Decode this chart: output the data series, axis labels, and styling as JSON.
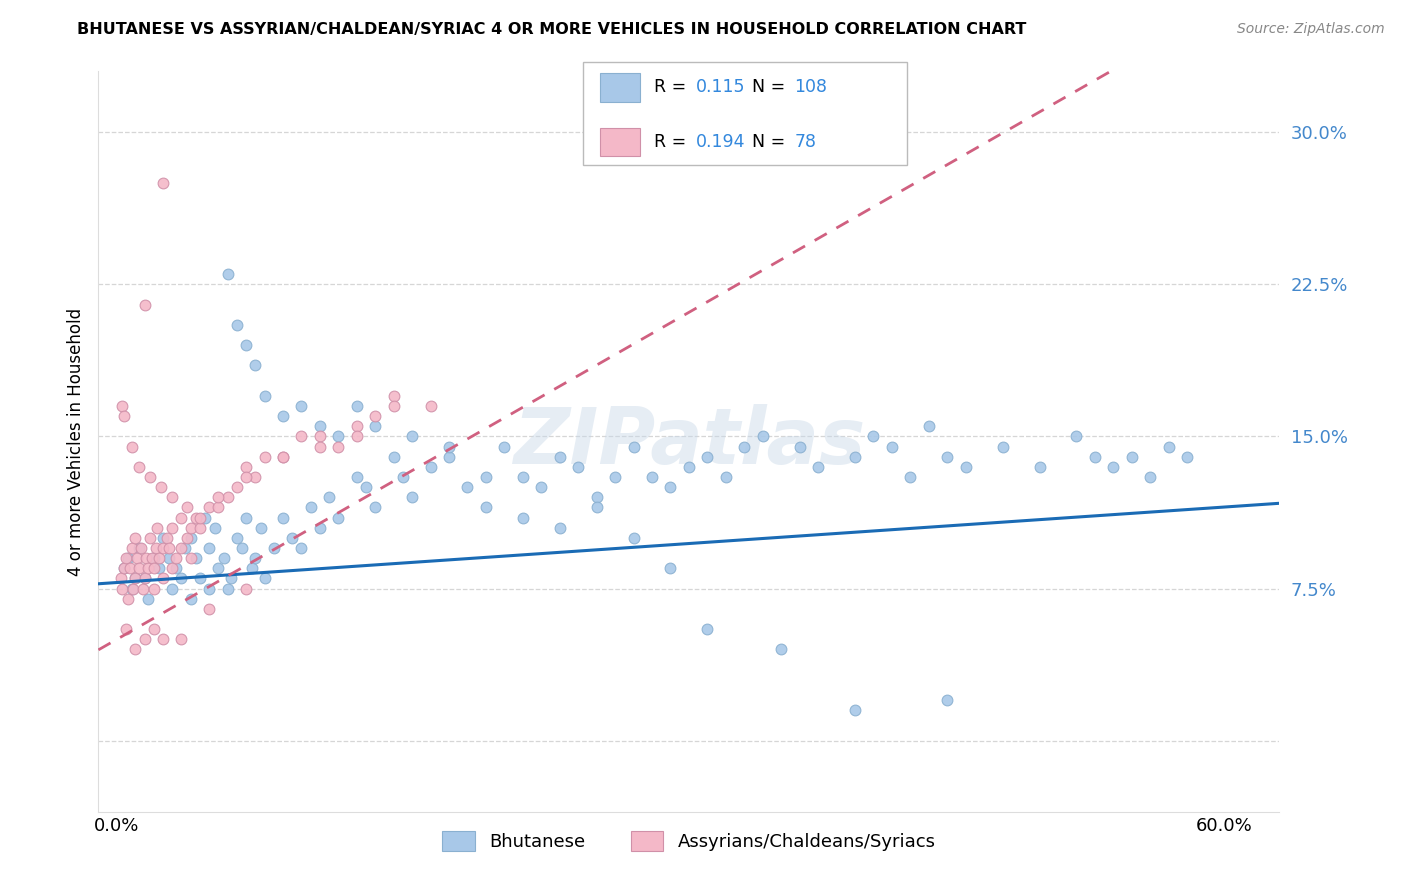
{
  "title": "BHUTANESE VS ASSYRIAN/CHALDEAN/SYRIAC 4 OR MORE VEHICLES IN HOUSEHOLD CORRELATION CHART",
  "source": "Source: ZipAtlas.com",
  "ylabel": "4 or more Vehicles in Household",
  "blue_R": "0.115",
  "blue_N": "108",
  "pink_R": "0.194",
  "pink_N": "78",
  "blue_color": "#a8c8e8",
  "pink_color": "#f4b8c8",
  "trendline_blue": "#1a6bb5",
  "trendline_pink": "#d06080",
  "watermark": "ZIPatlas",
  "legend_label_blue": "Bhutanese",
  "legend_label_pink": "Assyrians/Chaldeans/Syriacs",
  "blue_intercept": 7.8,
  "blue_slope": 0.062,
  "pink_intercept": 5.0,
  "pink_slope": 0.52,
  "xlim_min": -1.0,
  "xlim_max": 63.0,
  "ylim_min": -3.5,
  "ylim_max": 33.0,
  "ytick_vals": [
    0.0,
    7.5,
    15.0,
    22.5,
    30.0
  ],
  "ytick_labels": [
    "",
    "7.5%",
    "15.0%",
    "22.5%",
    "30.0%"
  ],
  "xtick_vals": [
    0,
    10,
    20,
    30,
    40,
    50,
    60
  ],
  "xtick_labels": [
    "0.0%",
    "",
    "",
    "",
    "",
    "",
    "60.0%"
  ],
  "blue_x": [
    0.4,
    0.6,
    0.8,
    1.0,
    1.2,
    1.5,
    1.7,
    2.0,
    2.3,
    2.5,
    2.8,
    3.0,
    3.2,
    3.5,
    3.7,
    4.0,
    4.0,
    4.3,
    4.5,
    4.8,
    5.0,
    5.0,
    5.3,
    5.5,
    5.8,
    6.0,
    6.2,
    6.5,
    6.8,
    7.0,
    7.3,
    7.5,
    7.8,
    8.0,
    8.5,
    9.0,
    9.5,
    10.0,
    10.5,
    11.0,
    11.5,
    12.0,
    13.0,
    13.5,
    14.0,
    15.0,
    15.5,
    16.0,
    17.0,
    18.0,
    19.0,
    20.0,
    21.0,
    22.0,
    23.0,
    24.0,
    25.0,
    26.0,
    27.0,
    28.0,
    29.0,
    30.0,
    31.0,
    32.0,
    33.0,
    34.0,
    35.0,
    37.0,
    38.0,
    40.0,
    41.0,
    42.0,
    43.0,
    44.0,
    45.0,
    46.0,
    48.0,
    50.0,
    52.0,
    53.0,
    54.0,
    55.0,
    56.0,
    57.0,
    58.0,
    6.0,
    6.5,
    7.0,
    7.5,
    8.0,
    9.0,
    10.0,
    11.0,
    12.0,
    13.0,
    14.0,
    16.0,
    18.0,
    20.0,
    22.0,
    24.0,
    26.0,
    28.0,
    30.0,
    32.0,
    36.0,
    40.0,
    45.0
  ],
  "blue_y": [
    8.5,
    9.0,
    7.5,
    8.0,
    9.5,
    8.0,
    7.0,
    9.0,
    8.5,
    10.0,
    9.0,
    7.5,
    8.5,
    8.0,
    9.5,
    7.0,
    10.0,
    9.0,
    8.0,
    11.0,
    9.5,
    7.5,
    10.5,
    8.5,
    9.0,
    7.5,
    8.0,
    10.0,
    9.5,
    11.0,
    8.5,
    9.0,
    10.5,
    8.0,
    9.5,
    11.0,
    10.0,
    9.5,
    11.5,
    10.5,
    12.0,
    11.0,
    13.0,
    12.5,
    11.5,
    14.0,
    13.0,
    12.0,
    13.5,
    14.0,
    12.5,
    13.0,
    14.5,
    13.0,
    12.5,
    14.0,
    13.5,
    12.0,
    13.0,
    14.5,
    13.0,
    12.5,
    13.5,
    14.0,
    13.0,
    14.5,
    15.0,
    14.5,
    13.5,
    14.0,
    15.0,
    14.5,
    13.0,
    15.5,
    14.0,
    13.5,
    14.5,
    13.5,
    15.0,
    14.0,
    13.5,
    14.0,
    13.0,
    14.5,
    14.0,
    23.0,
    20.5,
    19.5,
    18.5,
    17.0,
    16.0,
    16.5,
    15.5,
    15.0,
    16.5,
    15.5,
    15.0,
    14.5,
    11.5,
    11.0,
    10.5,
    11.5,
    10.0,
    8.5,
    5.5,
    4.5,
    1.5,
    2.0
  ],
  "pink_x": [
    0.2,
    0.3,
    0.4,
    0.5,
    0.6,
    0.7,
    0.8,
    0.9,
    1.0,
    1.0,
    1.1,
    1.2,
    1.3,
    1.4,
    1.5,
    1.6,
    1.7,
    1.8,
    1.9,
    2.0,
    2.0,
    2.1,
    2.2,
    2.3,
    2.5,
    2.5,
    2.7,
    2.8,
    3.0,
    3.0,
    3.2,
    3.5,
    3.5,
    3.8,
    4.0,
    4.0,
    4.3,
    4.5,
    5.0,
    5.5,
    6.0,
    6.5,
    7.0,
    7.5,
    8.0,
    9.0,
    10.0,
    11.0,
    12.0,
    13.0,
    14.0,
    15.0,
    2.5,
    1.5,
    0.3,
    0.4,
    0.8,
    1.2,
    1.8,
    2.4,
    3.0,
    3.8,
    4.5,
    5.5,
    7.0,
    9.0,
    11.0,
    13.0,
    15.0,
    17.0,
    0.5,
    1.0,
    1.5,
    2.0,
    2.5,
    3.5,
    5.0,
    7.0
  ],
  "pink_y": [
    8.0,
    7.5,
    8.5,
    9.0,
    7.0,
    8.5,
    9.5,
    7.5,
    8.0,
    10.0,
    9.0,
    8.5,
    9.5,
    7.5,
    8.0,
    9.0,
    8.5,
    10.0,
    9.0,
    8.5,
    7.5,
    9.5,
    10.5,
    9.0,
    9.5,
    8.0,
    10.0,
    9.5,
    10.5,
    8.5,
    9.0,
    11.0,
    9.5,
    10.0,
    10.5,
    9.0,
    11.0,
    10.5,
    11.5,
    11.5,
    12.0,
    12.5,
    13.5,
    13.0,
    14.0,
    14.0,
    15.0,
    15.0,
    14.5,
    15.5,
    16.0,
    17.0,
    27.5,
    21.5,
    16.5,
    16.0,
    14.5,
    13.5,
    13.0,
    12.5,
    12.0,
    11.5,
    11.0,
    12.0,
    13.0,
    14.0,
    14.5,
    15.0,
    16.5,
    16.5,
    5.5,
    4.5,
    5.0,
    5.5,
    5.0,
    5.0,
    6.5,
    7.5
  ]
}
